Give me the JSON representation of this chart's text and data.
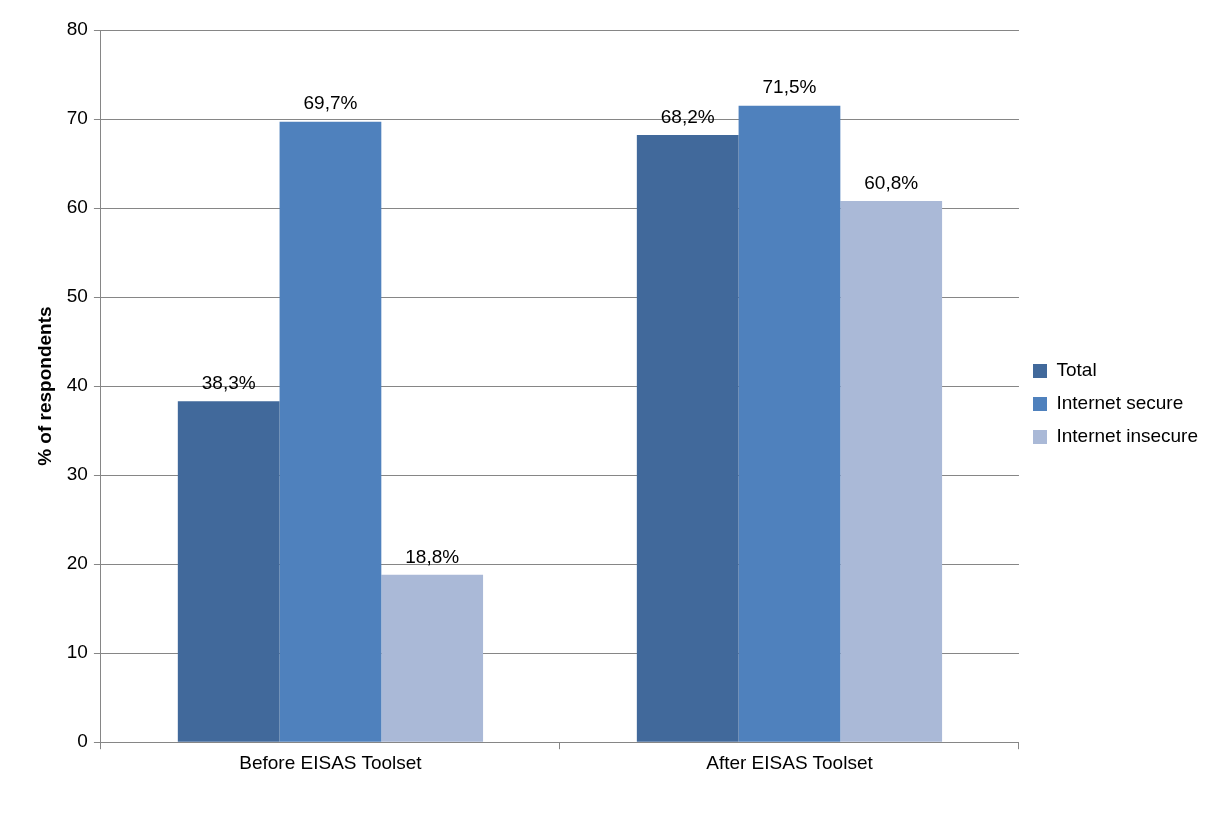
{
  "chart_data": {
    "type": "bar",
    "ylabel": "% of respondents",
    "categories": [
      "Before EISAS Toolset",
      "After EISAS Toolset"
    ],
    "series": [
      {
        "name": "Total",
        "color": "#41699b",
        "values": [
          38.3,
          68.2
        ],
        "value_labels": [
          "38,3%",
          "68,2%"
        ]
      },
      {
        "name": "Internet secure",
        "color": "#4f81bd",
        "values": [
          69.7,
          71.5
        ],
        "value_labels": [
          "69,7%",
          "71,5%"
        ]
      },
      {
        "name": "Internet insecure",
        "color": "#aab9d7",
        "values": [
          18.8,
          60.8
        ],
        "value_labels": [
          "18,8%",
          "60,8%"
        ]
      }
    ],
    "ylim": [
      0,
      80
    ],
    "yticks": [
      0,
      10,
      20,
      30,
      40,
      50,
      60,
      70,
      80
    ],
    "grid": "y",
    "legend": "right"
  }
}
